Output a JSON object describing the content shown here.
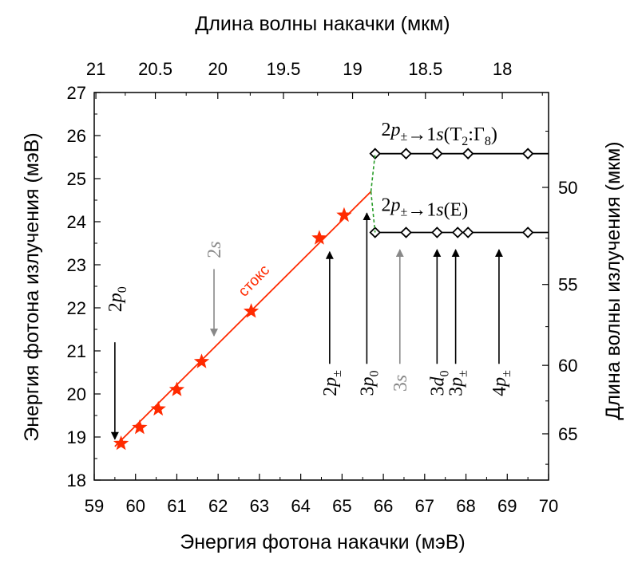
{
  "chart_data": {
    "type": "scatter",
    "xlabel": "Энергия фотона накачки (мэВ)",
    "ylabel": "Энергия фотона излучения (мэВ)",
    "top_xlabel": "Длина волны накачки (мкм)",
    "right_ylabel": "Длина волны излучения (мкм)",
    "xlim": [
      59,
      70
    ],
    "ylim": [
      18,
      27
    ],
    "x_ticks": [
      59,
      60,
      61,
      62,
      63,
      64,
      65,
      66,
      67,
      68,
      69,
      70
    ],
    "y_ticks": [
      18,
      19,
      20,
      21,
      22,
      23,
      24,
      25,
      26,
      27
    ],
    "top_ticks": [
      {
        "label": "21",
        "um": 21
      },
      {
        "label": "20.5",
        "um": 20.5
      },
      {
        "label": "20",
        "um": 20
      },
      {
        "label": "19.5",
        "um": 19.5
      },
      {
        "label": "19",
        "um": 19
      },
      {
        "label": "18.5",
        "um": 18.5
      },
      {
        "label": "18",
        "um": 18
      }
    ],
    "right_ticks": [
      {
        "label": "50",
        "um": 50
      },
      {
        "label": "55",
        "um": 55
      },
      {
        "label": "60",
        "um": 60
      },
      {
        "label": "65",
        "um": 65
      }
    ],
    "grid": false,
    "colors": {
      "stokes": "#ff2a00",
      "lines": "#000000",
      "gray": "#888888",
      "dashed": "#2a9d2a"
    },
    "series": [
      {
        "name": "стокс",
        "marker": "star",
        "points": [
          [
            59.65,
            18.85
          ],
          [
            60.1,
            19.22
          ],
          [
            60.55,
            19.65
          ],
          [
            61.0,
            20.1
          ],
          [
            61.6,
            20.75
          ],
          [
            62.8,
            21.92
          ],
          [
            64.45,
            23.62
          ],
          [
            65.05,
            24.15
          ]
        ],
        "line": [
          [
            59.5,
            18.78
          ],
          [
            65.7,
            24.7
          ]
        ]
      },
      {
        "name": "2p±→1s(T2:Γ8)",
        "marker": "diamond",
        "points": [
          [
            65.8,
            25.58
          ],
          [
            66.55,
            25.58
          ],
          [
            67.3,
            25.58
          ],
          [
            68.05,
            25.58
          ],
          [
            69.5,
            25.58
          ]
        ],
        "line": [
          [
            65.8,
            25.58
          ],
          [
            70,
            25.58
          ]
        ]
      },
      {
        "name": "2p±→1s(E)",
        "marker": "diamond",
        "points": [
          [
            65.8,
            23.75
          ],
          [
            66.55,
            23.75
          ],
          [
            67.3,
            23.75
          ],
          [
            67.8,
            23.75
          ],
          [
            68.05,
            23.75
          ],
          [
            69.5,
            23.75
          ]
        ],
        "line": [
          [
            65.8,
            23.75
          ],
          [
            70,
            23.75
          ]
        ]
      }
    ],
    "dashed_links": [
      [
        [
          65.7,
          24.7
        ],
        [
          65.8,
          25.58
        ]
      ],
      [
        [
          65.7,
          24.7
        ],
        [
          65.8,
          23.75
        ]
      ]
    ],
    "annotations": {
      "stokes_label": "стокс",
      "upper_label": {
        "a": "2",
        "b": "p",
        "c": "±",
        "d": "→1",
        "e": "s",
        "f": "(T",
        "g": "2",
        "h": ":Γ",
        "i": "8",
        "j": ")"
      },
      "lower_label": {
        "a": "2",
        "b": "p",
        "c": "±",
        "d": "→1",
        "e": "s",
        "f": "(E)"
      }
    },
    "arrows": [
      {
        "id": "2p0",
        "num": "2",
        "ital": "p",
        "sub": "0",
        "x": 59.5,
        "from": 21.2,
        "to": 18.95,
        "dir": "down",
        "color": "black",
        "label_y": 22.2
      },
      {
        "id": "2s",
        "num": "2",
        "ital": "s",
        "sub": "",
        "x": 61.9,
        "from": 22.9,
        "to": 21.35,
        "dir": "down",
        "color": "gray",
        "label_y": 23.35
      },
      {
        "id": "2p±",
        "num": "2",
        "ital": "p",
        "sub": "±",
        "x": 64.7,
        "from": 20.7,
        "to": 23.3,
        "dir": "up",
        "color": "black",
        "label_y": 20.25
      },
      {
        "id": "3p0",
        "num": "3",
        "ital": "p",
        "sub": "0",
        "x": 65.6,
        "from": 20.7,
        "to": 24.2,
        "dir": "up",
        "color": "black",
        "label_y": 20.25
      },
      {
        "id": "3s",
        "num": "3",
        "ital": "s",
        "sub": "",
        "x": 66.4,
        "from": 20.7,
        "to": 23.35,
        "dir": "up",
        "color": "gray",
        "label_y": 20.25
      },
      {
        "id": "3d0",
        "num": "3",
        "ital": "d",
        "sub": "0",
        "x": 67.3,
        "from": 20.7,
        "to": 23.35,
        "dir": "up",
        "color": "black",
        "label_y": 20.25
      },
      {
        "id": "3p±",
        "num": "3",
        "ital": "p",
        "sub": "±",
        "x": 67.75,
        "from": 20.7,
        "to": 23.35,
        "dir": "up",
        "color": "black",
        "label_y": 20.25
      },
      {
        "id": "4p±",
        "num": "4",
        "ital": "p",
        "sub": "±",
        "x": 68.8,
        "from": 20.7,
        "to": 23.35,
        "dir": "up",
        "color": "black",
        "label_y": 20.25
      }
    ]
  }
}
